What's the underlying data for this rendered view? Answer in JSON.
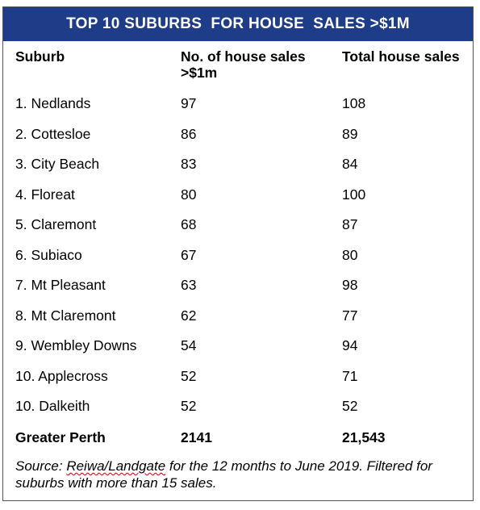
{
  "colors": {
    "title_bar_bg": "#1F3C88",
    "title_text": "#FFFFFF",
    "border": "#555555",
    "text": "#000000"
  },
  "title": "TOP 10 SUBURBS  FOR HOUSE  SALES >$1M",
  "headers": {
    "suburb": "Suburb",
    "sales_over_1m": "No. of house sales >$1m",
    "total_sales": "Total house sales"
  },
  "rows": [
    {
      "suburb": "1. Nedlands",
      "sales_over_1m": "97",
      "total_sales": "108"
    },
    {
      "suburb": "2. Cottesloe",
      "sales_over_1m": "86",
      "total_sales": "89"
    },
    {
      "suburb": "3. City Beach",
      "sales_over_1m": "83",
      "total_sales": "84"
    },
    {
      "suburb": "4. Floreat",
      "sales_over_1m": "80",
      "total_sales": "100"
    },
    {
      "suburb": "5. Claremont",
      "sales_over_1m": "68",
      "total_sales": "87"
    },
    {
      "suburb": "6. Subiaco",
      "sales_over_1m": "67",
      "total_sales": "80"
    },
    {
      "suburb": "7. Mt Pleasant",
      "sales_over_1m": "63",
      "total_sales": "98"
    },
    {
      "suburb": "8. Mt Claremont",
      "sales_over_1m": "62",
      "total_sales": "77"
    },
    {
      "suburb": "9. Wembley Downs",
      "sales_over_1m": "54",
      "total_sales": "94"
    },
    {
      "suburb": "10. Applecross",
      "sales_over_1m": "52",
      "total_sales": "71"
    },
    {
      "suburb": "10. Dalkeith",
      "sales_over_1m": "52",
      "total_sales": "52"
    }
  ],
  "total": {
    "suburb": "Greater Perth",
    "sales_over_1m": "2141",
    "total_sales": "21,543"
  },
  "source": {
    "prefix": "Source: ",
    "underlined": "Reiwa/Landgate",
    "rest": " for the 12 months to June 2019. Filtered for suburbs with more than 15 sales."
  }
}
